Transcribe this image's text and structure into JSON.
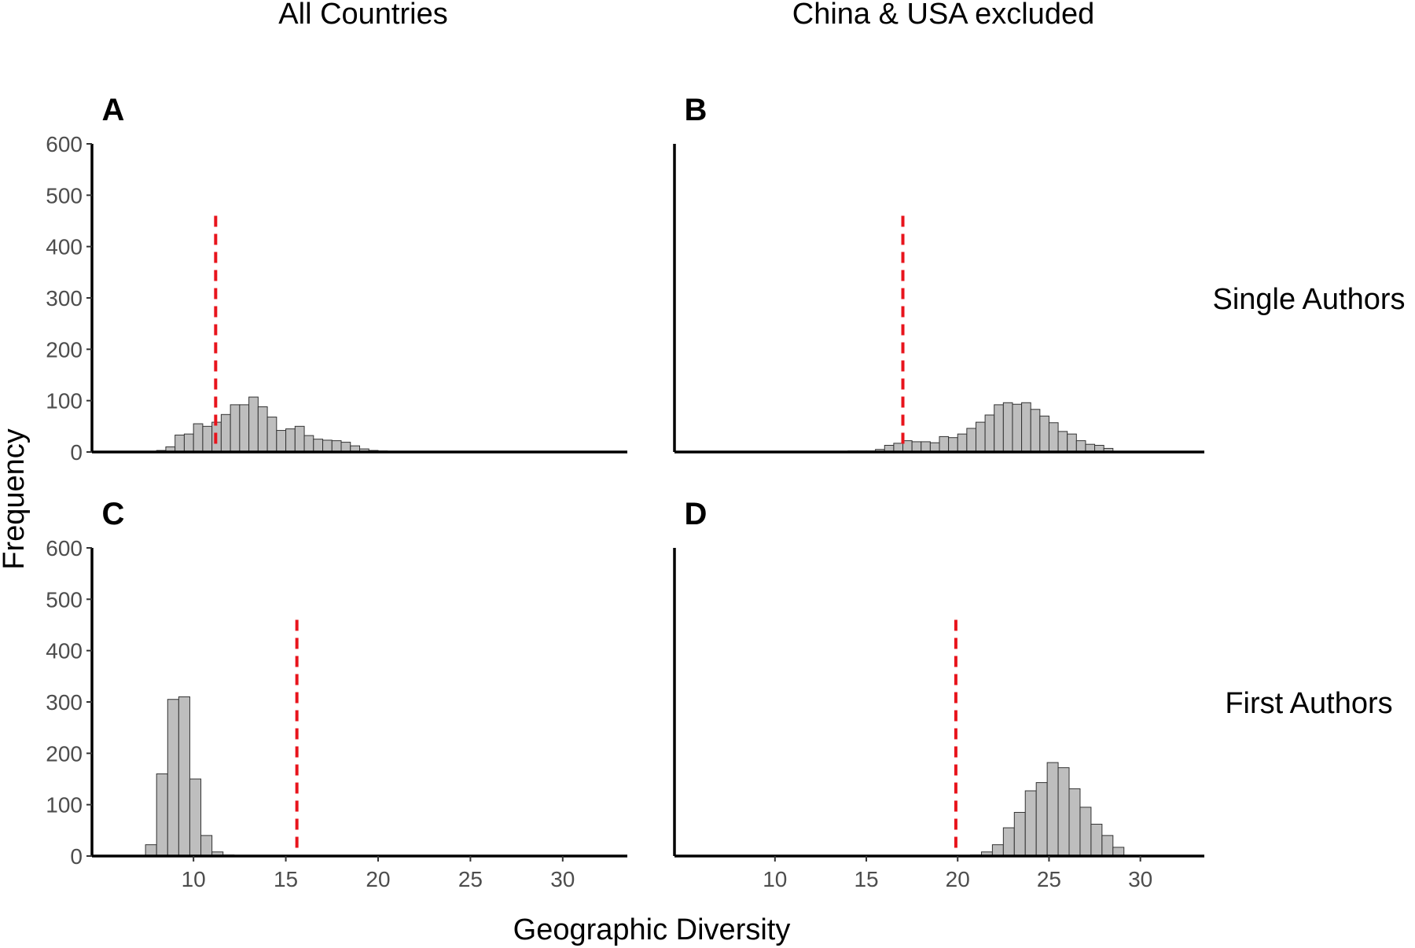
{
  "figure": {
    "col_titles": [
      "All Countries",
      "China & USA excluded"
    ],
    "row_titles": [
      "Single Authors",
      "First Authors"
    ],
    "xlabel": "Geographic Diversity",
    "ylabel": "Frequency"
  },
  "colors": {
    "bar_fill": "#bebebe",
    "bar_outline": "#333333",
    "reference_line": "#e8141c",
    "axis": "#000000"
  },
  "chart_data": [
    {
      "type": "bar",
      "panel": "A",
      "row": "Single Authors",
      "col": "All Countries",
      "bin_width": 0.5,
      "bin_starts": [
        8.0,
        8.5,
        9.0,
        9.5,
        10.0,
        10.5,
        11.0,
        11.5,
        12.0,
        12.5,
        13.0,
        13.5,
        14.0,
        14.5,
        15.0,
        15.5,
        16.0,
        16.5,
        17.0,
        17.5,
        18.0,
        18.5,
        19.0,
        19.5,
        20.0,
        20.5
      ],
      "values": [
        3,
        10,
        33,
        35,
        55,
        50,
        58,
        73,
        92,
        92,
        107,
        88,
        68,
        42,
        45,
        50,
        32,
        25,
        23,
        22,
        19,
        12,
        6,
        3,
        2,
        1
      ],
      "reference_line_x": 11.2,
      "xlim": [
        4.5,
        33.5
      ],
      "ylim": [
        0,
        600
      ],
      "xticks": [
        10,
        15,
        20,
        25,
        30
      ],
      "yticks": [
        0,
        100,
        200,
        300,
        400,
        500,
        600
      ],
      "show_x_tick_labels": false,
      "show_y_tick_labels": true
    },
    {
      "type": "bar",
      "panel": "B",
      "row": "Single Authors",
      "col": "China & USA excluded",
      "bin_width": 0.5,
      "bin_starts": [
        13.5,
        14.0,
        14.5,
        15.0,
        15.5,
        16.0,
        16.5,
        17.0,
        17.5,
        18.0,
        18.5,
        19.0,
        19.5,
        20.0,
        20.5,
        21.0,
        21.5,
        22.0,
        22.5,
        23.0,
        23.5,
        24.0,
        24.5,
        25.0,
        25.5,
        26.0,
        26.5,
        27.0,
        27.5,
        28.0
      ],
      "values": [
        1,
        2,
        2,
        2,
        5,
        13,
        17,
        22,
        20,
        20,
        18,
        30,
        28,
        35,
        46,
        58,
        72,
        92,
        96,
        93,
        96,
        83,
        70,
        57,
        40,
        35,
        22,
        15,
        13,
        7
      ],
      "reference_line_x": 17.0,
      "xlim": [
        4.5,
        33.5
      ],
      "ylim": [
        0,
        600
      ],
      "xticks": [
        10,
        15,
        20,
        25,
        30
      ],
      "yticks": [
        0,
        100,
        200,
        300,
        400,
        500,
        600
      ],
      "show_x_tick_labels": false,
      "show_y_tick_labels": false
    },
    {
      "type": "bar",
      "panel": "C",
      "row": "First Authors",
      "col": "All Countries",
      "bin_width": 0.6,
      "bin_starts": [
        7.4,
        8.0,
        8.6,
        9.2,
        9.8,
        10.4,
        11.0,
        11.6
      ],
      "values": [
        22,
        160,
        305,
        310,
        150,
        40,
        8,
        2
      ],
      "reference_line_x": 15.6,
      "xlim": [
        4.5,
        33.5
      ],
      "ylim": [
        0,
        600
      ],
      "xticks": [
        10,
        15,
        20,
        25,
        30
      ],
      "yticks": [
        0,
        100,
        200,
        300,
        400,
        500,
        600
      ],
      "show_x_tick_labels": true,
      "show_y_tick_labels": true
    },
    {
      "type": "bar",
      "panel": "D",
      "row": "First Authors",
      "col": "China & USA excluded",
      "bin_width": 0.6,
      "bin_starts": [
        20.7,
        21.3,
        21.9,
        22.5,
        23.1,
        23.7,
        24.3,
        24.9,
        25.5,
        26.1,
        26.7,
        27.3,
        27.9,
        28.5
      ],
      "values": [
        2,
        8,
        22,
        55,
        85,
        127,
        143,
        182,
        172,
        131,
        95,
        62,
        40,
        17
      ],
      "reference_line_x": 19.9,
      "xlim": [
        4.5,
        33.5
      ],
      "ylim": [
        0,
        600
      ],
      "xticks": [
        10,
        15,
        20,
        25,
        30
      ],
      "yticks": [
        0,
        100,
        200,
        300,
        400,
        500,
        600
      ],
      "show_x_tick_labels": true,
      "show_y_tick_labels": false
    }
  ]
}
